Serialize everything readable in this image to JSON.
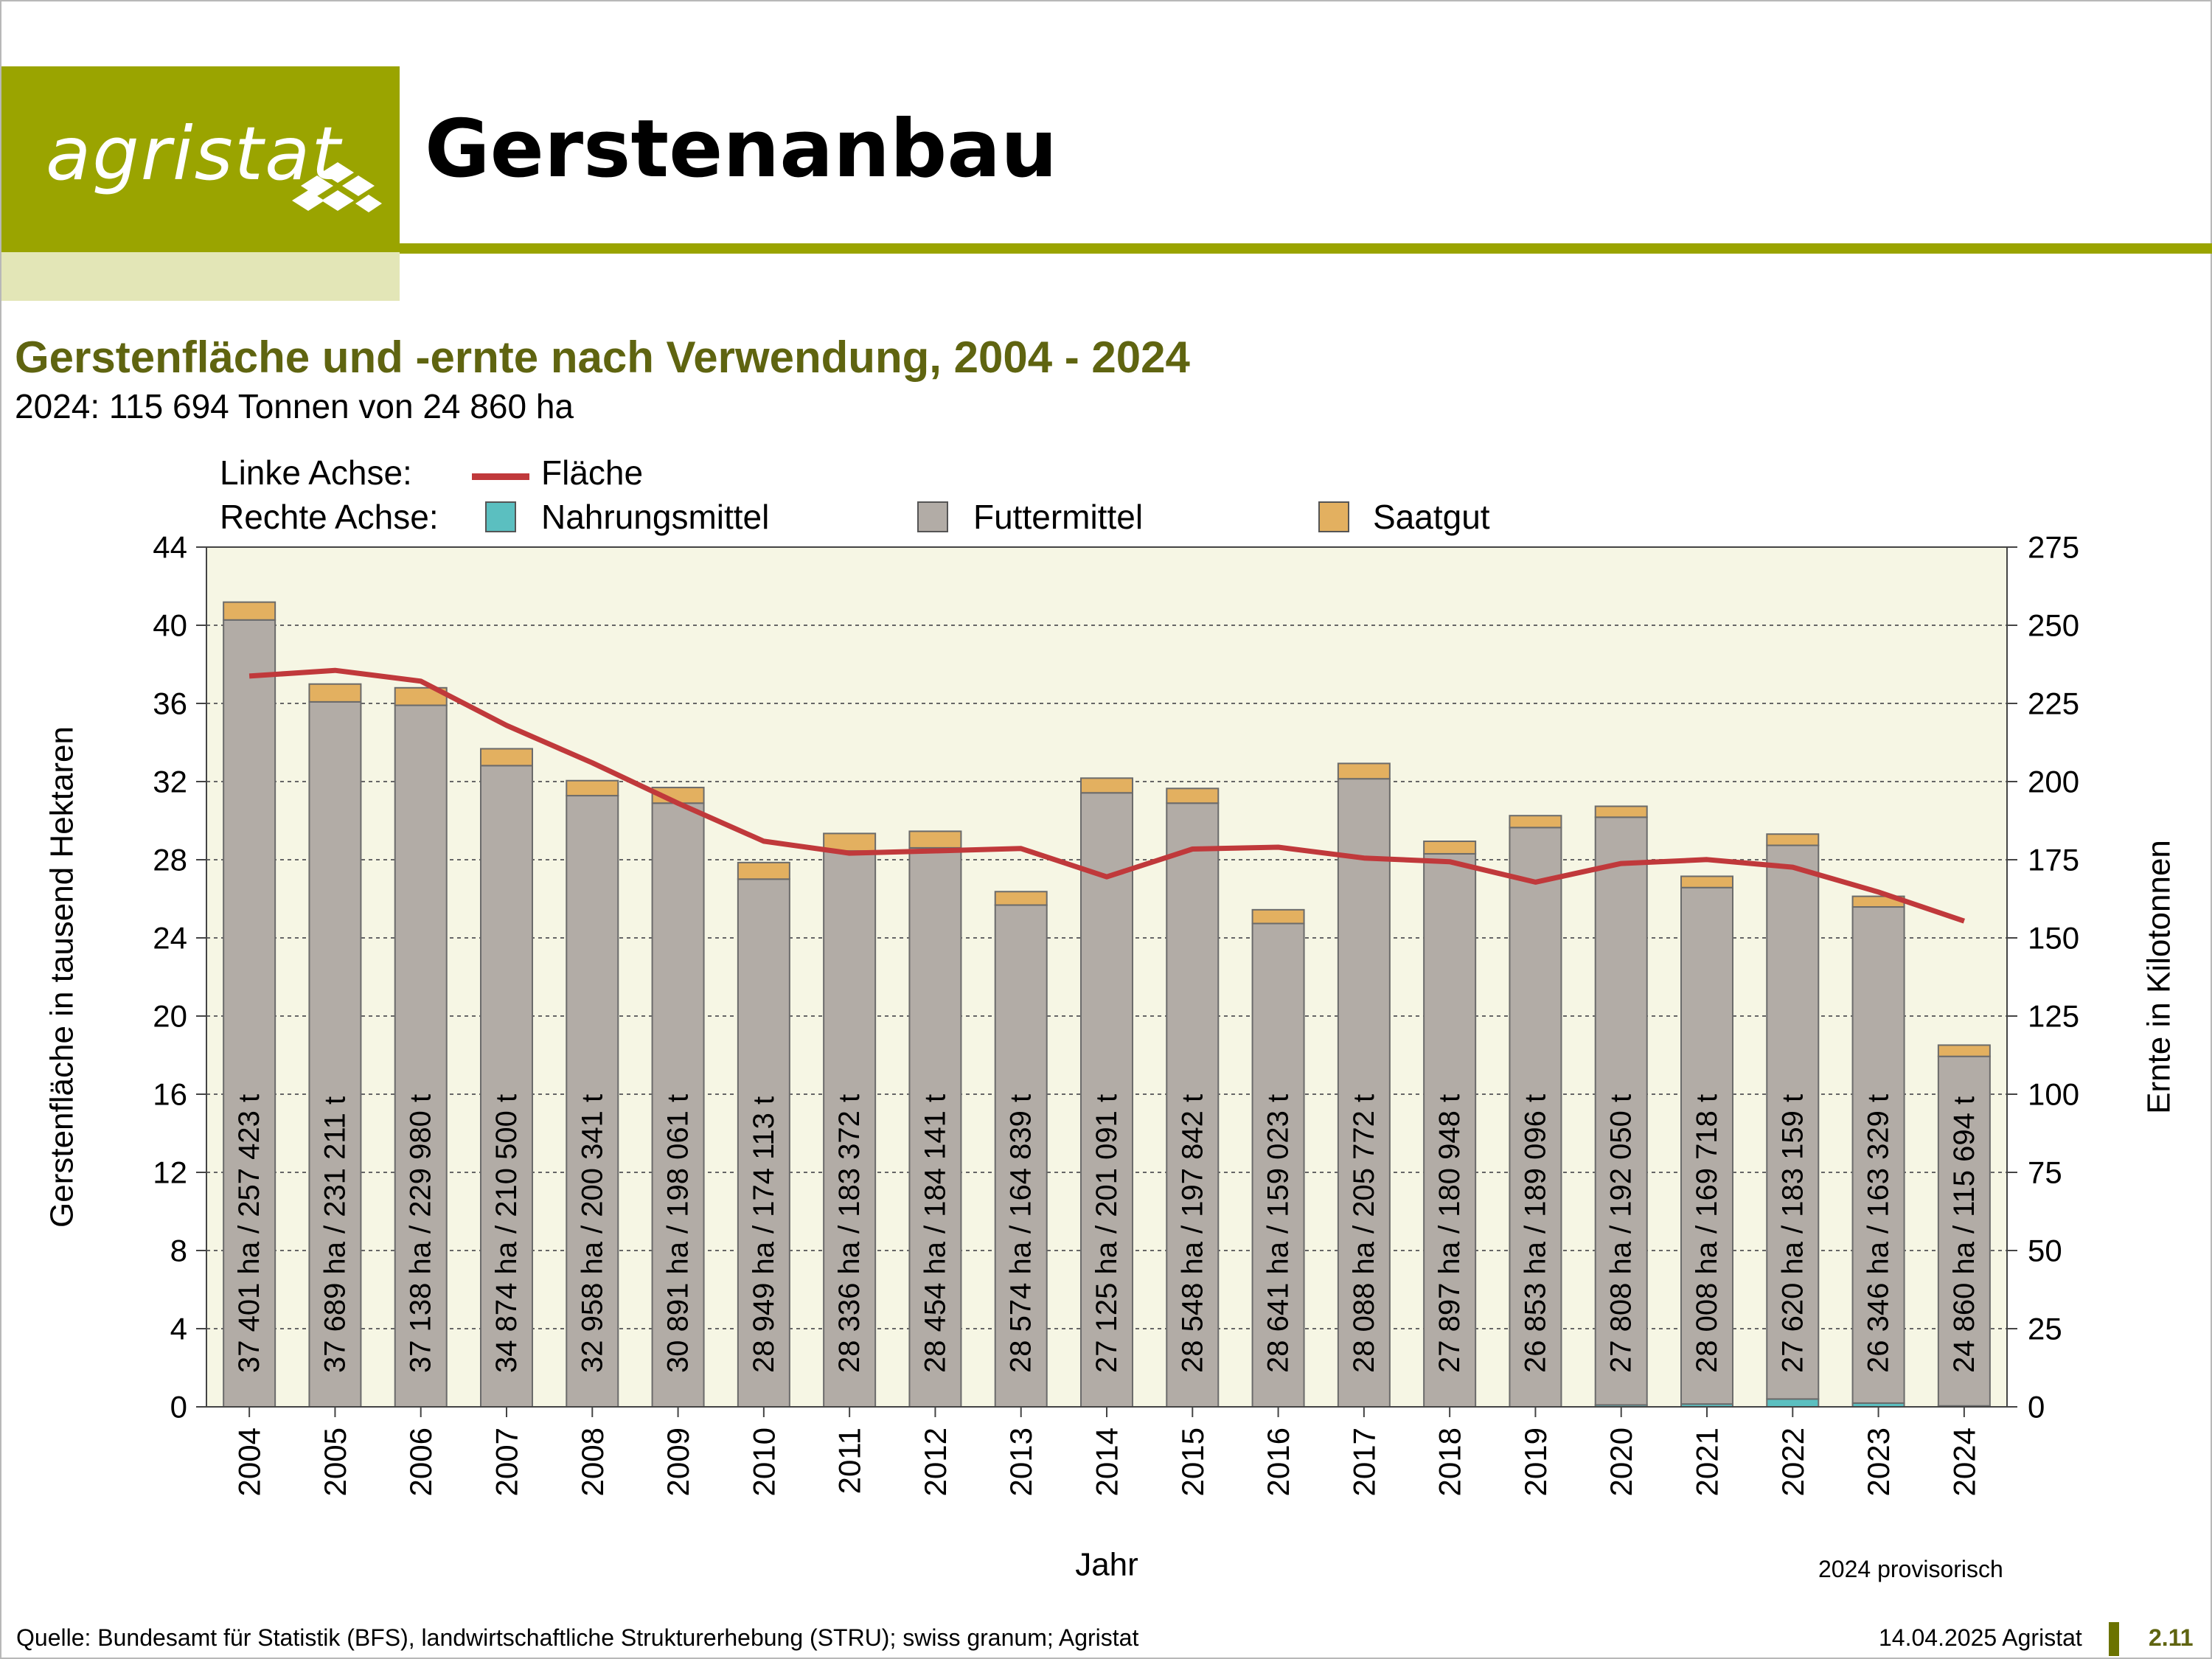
{
  "header": {
    "brand": "agristat",
    "page_title": "Gerstenanbau"
  },
  "chart_data": {
    "type": "bar",
    "title": "Gerstenfläche und -ernte nach Verwendung, 2004 - 2024",
    "subtitle": "2024: 115 694 Tonnen von 24 860 ha",
    "xlabel": "Jahr",
    "ylabel_left": "Gerstenfläche in tausend Hektaren",
    "ylabel_right": "Ernte in Kilotonnen",
    "ylim_left": [
      0,
      44
    ],
    "ylim_right": [
      0,
      275
    ],
    "yticks_left": [
      0,
      4,
      8,
      12,
      16,
      20,
      24,
      28,
      32,
      36,
      40,
      44
    ],
    "yticks_right": [
      0,
      25,
      50,
      75,
      100,
      125,
      150,
      175,
      200,
      225,
      250,
      275
    ],
    "legend_left_axis_label": "Linke Achse:",
    "legend_right_axis_label": "Rechte Achse:",
    "categories": [
      "2004",
      "2005",
      "2006",
      "2007",
      "2008",
      "2009",
      "2010",
      "2011",
      "2012",
      "2013",
      "2014",
      "2015",
      "2016",
      "2017",
      "2018",
      "2019",
      "2020",
      "2021",
      "2022",
      "2023",
      "2024"
    ],
    "series": [
      {
        "name": "Nahrungsmittel",
        "axis": "right",
        "color": "#5bbfc0",
        "values": [
          0,
          0,
          0,
          0,
          0,
          0,
          0,
          0,
          0,
          0,
          0,
          0,
          0,
          0,
          0,
          0,
          0.6,
          0.9,
          2.5,
          1.2,
          0.3
        ]
      },
      {
        "name": "Futtermittel",
        "axis": "right",
        "color": "#b2aca6",
        "values": [
          251.7,
          225.5,
          224.4,
          205.1,
          195.5,
          193.1,
          168.8,
          177.8,
          178.8,
          160.5,
          196.4,
          193.1,
          154.6,
          200.9,
          176.9,
          185.3,
          188.0,
          165.2,
          177.1,
          158.7,
          111.8
        ]
      },
      {
        "name": "Saatgut",
        "axis": "right",
        "color": "#e3b060",
        "values": [
          5.7,
          5.7,
          5.6,
          5.4,
          4.8,
          5.0,
          5.3,
          5.6,
          5.3,
          4.3,
          4.7,
          4.7,
          4.4,
          4.9,
          4.0,
          3.8,
          3.5,
          3.6,
          3.6,
          3.4,
          3.6
        ]
      },
      {
        "name": "Fläche",
        "axis": "left",
        "type": "line",
        "color": "#c0393b",
        "values": [
          37.401,
          37.689,
          37.138,
          34.874,
          32.958,
          30.891,
          28.949,
          28.336,
          28.454,
          28.574,
          27.125,
          28.548,
          28.641,
          28.088,
          27.897,
          26.853,
          27.808,
          28.008,
          27.62,
          26.346,
          24.86
        ]
      }
    ],
    "bar_labels": [
      "37 401 ha / 257 423 t",
      "37 689 ha / 231 211 t",
      "37 138 ha / 229 980 t",
      "34 874 ha / 210 500 t",
      "32 958 ha / 200 341 t",
      "30 891 ha / 198 061 t",
      "28 949 ha / 174 113 t",
      "28 336 ha / 183 372 t",
      "28 454 ha / 184 141 t",
      "28 574 ha / 164 839 t",
      "27 125 ha / 201 091 t",
      "28 548 ha / 197 842 t",
      "28 641 ha / 159 023 t",
      "28 088 ha / 205 772 t",
      "27 897 ha / 180 948 t",
      "26 853 ha / 189 096 t",
      "27 808 ha / 192 050 t",
      "28 008 ha / 169 718 t",
      "27 620 ha / 183 159 t",
      "26 346 ha / 163 329 t",
      "24 860 ha / 115 694 t"
    ],
    "note": "2024 provisorisch",
    "grid": true,
    "plot_background": "#f6f6e4"
  },
  "footer": {
    "source": "Quelle: Bundesamt für Statistik (BFS), landwirtschaftliche Strukturerhebung (STRU); swiss granum; Agristat",
    "date": "14.04.2025 Agristat",
    "page_number": "2.11"
  }
}
